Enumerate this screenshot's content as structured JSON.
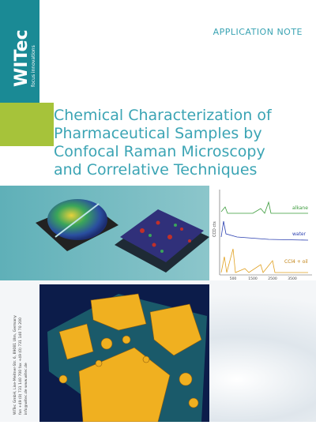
{
  "header": {
    "label": "APPLICATION NOTE",
    "logo": "WITec",
    "tagline": "focus innovations"
  },
  "title": {
    "lines": [
      "Chemical Characterization of",
      "Pharmaceutical Samples by",
      "Confocal Raman Microscopy",
      "and Correlative Techniques"
    ]
  },
  "spectra": {
    "labels": [
      "alkane",
      "water",
      "CCl4 + oil"
    ],
    "y_label": "CCD cts",
    "x_ticks": [
      "500",
      "1500",
      "2500",
      "3500"
    ]
  },
  "contact": {
    "lines": [
      "WITec GmbH, Lise-Meitner-Str. 6, 89081 Ulm, Germany",
      "fon +49 (0) 731 140 700  fax +49 (0) 731 140 70 200",
      "info@witec.de  www.witec.de"
    ]
  }
}
